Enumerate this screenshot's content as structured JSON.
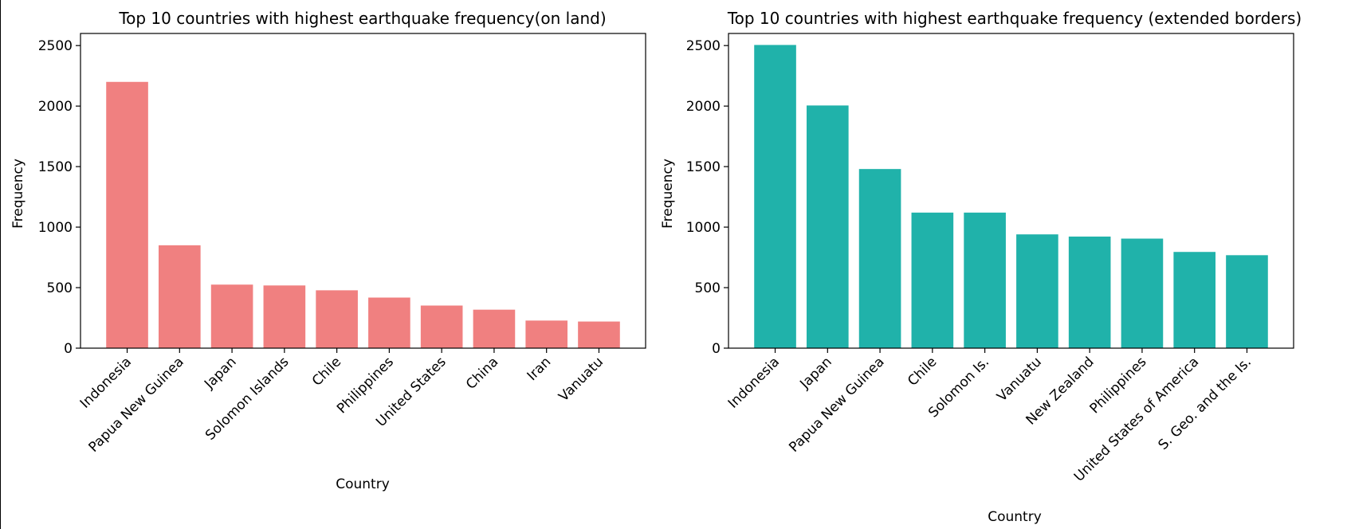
{
  "chart_data": [
    {
      "type": "bar",
      "title": "Top 10 countries with highest earthquake frequency(on land)",
      "xlabel": "Country",
      "ylabel": "Frequency",
      "categories": [
        "Indonesia",
        "Papua New Guinea",
        "Japan",
        "Solomon Islands",
        "Chile",
        "Philippines",
        "United States",
        "China",
        "Iran",
        "Vanuatu"
      ],
      "values": [
        2200,
        850,
        525,
        518,
        478,
        418,
        352,
        318,
        228,
        220
      ],
      "ylim": [
        0,
        2600
      ],
      "yticks": [
        0,
        500,
        1000,
        1500,
        2000,
        2500
      ],
      "color": "#f08080",
      "grid": false
    },
    {
      "type": "bar",
      "title": "Top 10 countries with highest earthquake frequency (extended borders)",
      "xlabel": "Country",
      "ylabel": "Frequency",
      "categories": [
        "Indonesia",
        "Japan",
        "Papua New Guinea",
        "Chile",
        "Solomon Is.",
        "Vanuatu",
        "New Zealand",
        "Philippines",
        "United States of America",
        "S. Geo. and the Is."
      ],
      "values": [
        2505,
        2005,
        1480,
        1120,
        1120,
        940,
        922,
        905,
        795,
        768
      ],
      "ylim": [
        0,
        2600
      ],
      "yticks": [
        0,
        500,
        1000,
        1500,
        2000,
        2500
      ],
      "color": "#20b2aa",
      "grid": false
    }
  ]
}
